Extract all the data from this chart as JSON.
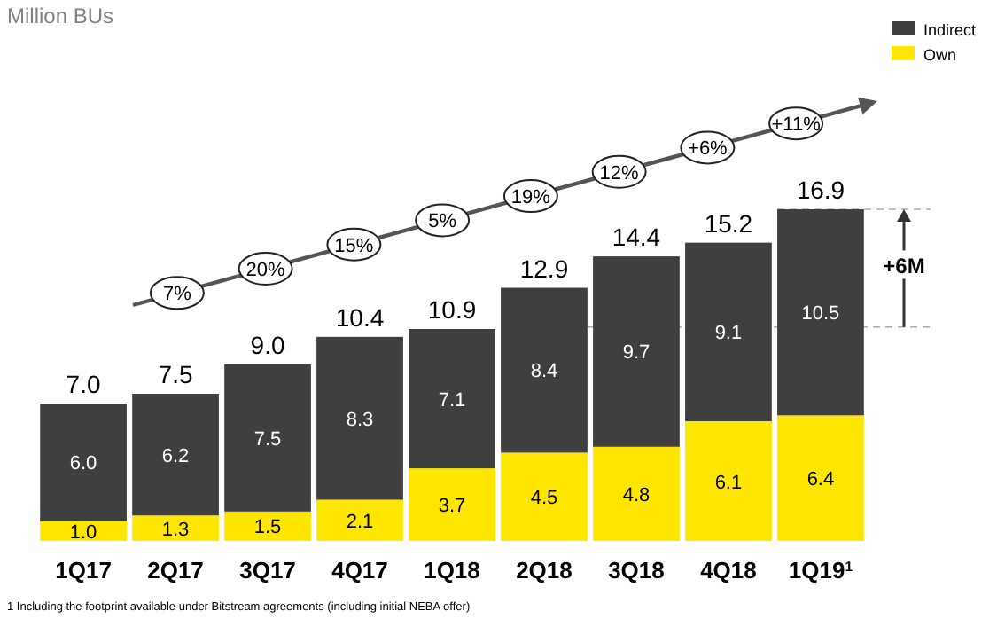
{
  "chart_data": {
    "type": "bar",
    "title": "Million BUs",
    "categories": [
      "1Q17",
      "2Q17",
      "3Q17",
      "4Q17",
      "1Q18",
      "2Q18",
      "3Q18",
      "4Q18",
      "1Q19$^{1}$"
    ],
    "stacked": true,
    "legend": "top right",
    "series": [
      {
        "name": "Own",
        "color": "#ffe600",
        "values": [
          1.0,
          1.3,
          1.5,
          2.1,
          3.7,
          4.5,
          4.8,
          6.1,
          6.4
        ],
        "value_labels": [
          "1.0",
          "1.3",
          "1.5",
          "2.1",
          "3.7",
          "4.5",
          "4.8",
          "6.1",
          "6.4"
        ]
      },
      {
        "name": "Indirect",
        "color": "#3f3f3f",
        "values": [
          6.0,
          6.2,
          7.5,
          8.3,
          7.1,
          8.4,
          9.7,
          9.1,
          10.5
        ],
        "value_labels": [
          "6.0",
          "6.2",
          "7.5",
          "8.3",
          "7.1",
          "8.4",
          "9.7",
          "9.1",
          "10.5"
        ]
      }
    ],
    "totals": [
      "7.0",
      "7.5",
      "9.0",
      "10.4",
      "10.9",
      "12.9",
      "14.4",
      "15.2",
      "16.9"
    ],
    "ref_lines": [
      {
        "axis": "y",
        "value": 10.9,
        "line_style": "dashed",
        "color": "#aaaaaa"
      },
      {
        "axis": "y",
        "value": 16.9,
        "line_style": "dashed",
        "color": "#aaaaaa"
      }
    ],
    "annotations": [
      "7%",
      "20%",
      "15%",
      "5%",
      "19%",
      "12%",
      "+6%",
      "+11%",
      "+6M",
      "1 Including the footprint available under Bitstream agreements (including initial NEBA offer)"
    ]
  }
}
